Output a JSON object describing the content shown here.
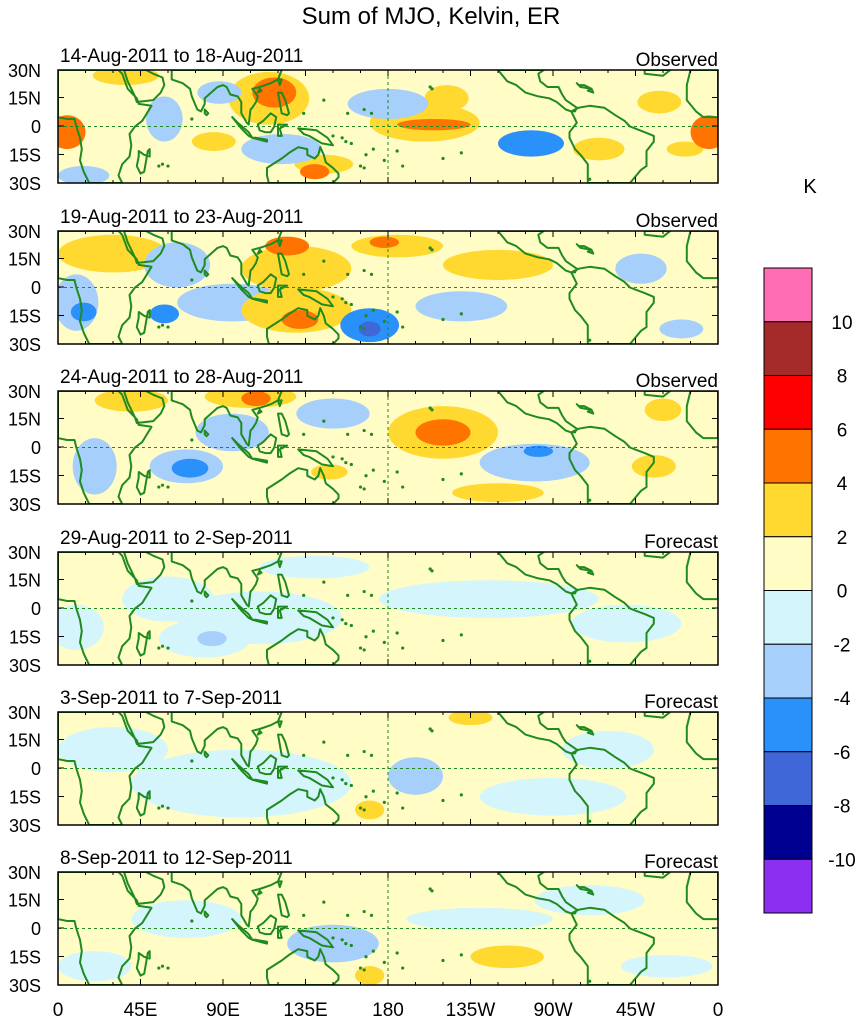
{
  "chart_data": {
    "type": "heatmap",
    "title": "Sum of MJO, Kelvin, ER",
    "units": "K",
    "y_ticks": [
      "30N",
      "15N",
      "0",
      "15S",
      "30S"
    ],
    "x_ticks": [
      "0",
      "45E",
      "90E",
      "135E",
      "180",
      "135W",
      "90W",
      "45W",
      "0"
    ],
    "x_range_deg_east": [
      0,
      360
    ],
    "y_range_deg": [
      -30,
      30
    ],
    "colorbar": {
      "label": "K",
      "levels": [
        10,
        8,
        6,
        4,
        2,
        0,
        -2,
        -4,
        -6,
        -8,
        -10
      ],
      "bins": [
        {
          "range": "> 10",
          "color": "#ff6eb4"
        },
        {
          "range": "8 to 10",
          "color": "#a52a2a"
        },
        {
          "range": "6 to 8",
          "color": "#ff0000"
        },
        {
          "range": "4 to 6",
          "color": "#ff7300"
        },
        {
          "range": "2 to 4",
          "color": "#ffd92f"
        },
        {
          "range": "0 to 2",
          "color": "#fffcc6"
        },
        {
          "range": "-2 to 0",
          "color": "#d4f5fb"
        },
        {
          "range": "-4 to -2",
          "color": "#a6cffb"
        },
        {
          "range": "-6 to -4",
          "color": "#2a90fa"
        },
        {
          "range": "-8 to -6",
          "color": "#4067d8"
        },
        {
          "range": "-10 to -8",
          "color": "#000090"
        },
        {
          "range": "< -10",
          "color": "#8c2ff0"
        }
      ]
    },
    "panels": [
      {
        "period": "14-Aug-2011 to 18-Aug-2011",
        "status": "Observed",
        "anomalies": [
          {
            "lon": 5,
            "lat": -3,
            "rlon": 10,
            "rlat": 9,
            "value": 5
          },
          {
            "lon": 355,
            "lat": -3,
            "rlon": 10,
            "rlat": 9,
            "value": 5
          },
          {
            "lon": 37,
            "lat": 27,
            "rlon": 18,
            "rlat": 5,
            "value": 3
          },
          {
            "lon": 115,
            "lat": 15,
            "rlon": 22,
            "rlat": 14,
            "value": 3
          },
          {
            "lon": 118,
            "lat": 18,
            "rlon": 12,
            "rlat": 8,
            "value": 5
          },
          {
            "lon": 88,
            "lat": 18,
            "rlon": 12,
            "rlat": 6,
            "value": -3
          },
          {
            "lon": 58,
            "lat": 4,
            "rlon": 10,
            "rlat": 12,
            "value": -3
          },
          {
            "lon": 85,
            "lat": -8,
            "rlon": 12,
            "rlat": 5,
            "value": 3
          },
          {
            "lon": 145,
            "lat": -20,
            "rlon": 16,
            "rlat": 5,
            "value": 3
          },
          {
            "lon": 122,
            "lat": -12,
            "rlon": 22,
            "rlat": 8,
            "value": -3
          },
          {
            "lon": 140,
            "lat": -24,
            "rlon": 8,
            "rlat": 4,
            "value": 5
          },
          {
            "lon": 200,
            "lat": 2,
            "rlon": 30,
            "rlat": 10,
            "value": 3
          },
          {
            "lon": 205,
            "lat": 1,
            "rlon": 20,
            "rlat": 3,
            "value": 5
          },
          {
            "lon": 212,
            "lat": 15,
            "rlon": 12,
            "rlat": 7,
            "value": 3
          },
          {
            "lon": 258,
            "lat": -9,
            "rlon": 18,
            "rlat": 7,
            "value": -5
          },
          {
            "lon": 295,
            "lat": -12,
            "rlon": 14,
            "rlat": 6,
            "value": 3
          },
          {
            "lon": 328,
            "lat": 13,
            "rlon": 12,
            "rlat": 6,
            "value": 3
          },
          {
            "lon": 342,
            "lat": -12,
            "rlon": 10,
            "rlat": 4,
            "value": 3
          },
          {
            "lon": 180,
            "lat": 12,
            "rlon": 22,
            "rlat": 8,
            "value": -3
          },
          {
            "lon": 14,
            "lat": -26,
            "rlon": 14,
            "rlat": 5,
            "value": -3
          }
        ]
      },
      {
        "period": "19-Aug-2011 to 23-Aug-2011",
        "status": "Observed",
        "anomalies": [
          {
            "lon": 30,
            "lat": 18,
            "rlon": 30,
            "rlat": 10,
            "value": 3
          },
          {
            "lon": 10,
            "lat": -8,
            "rlon": 12,
            "rlat": 15,
            "value": -3
          },
          {
            "lon": 14,
            "lat": -13,
            "rlon": 7,
            "rlat": 5,
            "value": -5
          },
          {
            "lon": 65,
            "lat": 12,
            "rlon": 18,
            "rlat": 12,
            "value": -3
          },
          {
            "lon": 58,
            "lat": -14,
            "rlon": 8,
            "rlat": 5,
            "value": -5
          },
          {
            "lon": 95,
            "lat": -8,
            "rlon": 30,
            "rlat": 10,
            "value": -3
          },
          {
            "lon": 130,
            "lat": 10,
            "rlon": 30,
            "rlat": 12,
            "value": 3
          },
          {
            "lon": 125,
            "lat": 22,
            "rlon": 12,
            "rlat": 5,
            "value": 5
          },
          {
            "lon": 130,
            "lat": -12,
            "rlon": 30,
            "rlat": 12,
            "value": 3
          },
          {
            "lon": 132,
            "lat": -17,
            "rlon": 10,
            "rlat": 5,
            "value": 5
          },
          {
            "lon": 170,
            "lat": -20,
            "rlon": 16,
            "rlat": 9,
            "value": -5
          },
          {
            "lon": 170,
            "lat": -22,
            "rlon": 6,
            "rlat": 4,
            "value": -7
          },
          {
            "lon": 185,
            "lat": 22,
            "rlon": 25,
            "rlat": 6,
            "value": 3
          },
          {
            "lon": 178,
            "lat": 24,
            "rlon": 8,
            "rlat": 3,
            "value": 5
          },
          {
            "lon": 240,
            "lat": 12,
            "rlon": 30,
            "rlat": 8,
            "value": 3
          },
          {
            "lon": 220,
            "lat": -10,
            "rlon": 25,
            "rlat": 8,
            "value": -3
          },
          {
            "lon": 318,
            "lat": 10,
            "rlon": 14,
            "rlat": 8,
            "value": -3
          },
          {
            "lon": 340,
            "lat": -22,
            "rlon": 12,
            "rlat": 5,
            "value": -3
          }
        ]
      },
      {
        "period": "24-Aug-2011 to 28-Aug-2011",
        "status": "Observed",
        "anomalies": [
          {
            "lon": 105,
            "lat": 27,
            "rlon": 25,
            "rlat": 6,
            "value": 3
          },
          {
            "lon": 108,
            "lat": 26,
            "rlon": 8,
            "rlat": 4,
            "value": 5
          },
          {
            "lon": 40,
            "lat": 25,
            "rlon": 20,
            "rlat": 6,
            "value": 3
          },
          {
            "lon": 20,
            "lat": -10,
            "rlon": 12,
            "rlat": 15,
            "value": -3
          },
          {
            "lon": 70,
            "lat": -10,
            "rlon": 20,
            "rlat": 9,
            "value": -3
          },
          {
            "lon": 72,
            "lat": -11,
            "rlon": 10,
            "rlat": 5,
            "value": -5
          },
          {
            "lon": 95,
            "lat": 8,
            "rlon": 20,
            "rlat": 10,
            "value": -3
          },
          {
            "lon": 150,
            "lat": 18,
            "rlon": 20,
            "rlat": 8,
            "value": -3
          },
          {
            "lon": 210,
            "lat": 8,
            "rlon": 30,
            "rlat": 14,
            "value": 3
          },
          {
            "lon": 210,
            "lat": 8,
            "rlon": 15,
            "rlat": 7,
            "value": 5
          },
          {
            "lon": 260,
            "lat": -8,
            "rlon": 30,
            "rlat": 10,
            "value": -3
          },
          {
            "lon": 262,
            "lat": -2,
            "rlon": 8,
            "rlat": 3,
            "value": -5
          },
          {
            "lon": 330,
            "lat": 20,
            "rlon": 10,
            "rlat": 6,
            "value": 3
          },
          {
            "lon": 325,
            "lat": -10,
            "rlon": 12,
            "rlat": 6,
            "value": 3
          },
          {
            "lon": 240,
            "lat": -24,
            "rlon": 25,
            "rlat": 5,
            "value": 3
          },
          {
            "lon": 148,
            "lat": -13,
            "rlon": 10,
            "rlat": 4,
            "value": 3
          }
        ]
      },
      {
        "period": "29-Aug-2011 to 2-Sep-2011",
        "status": "Forecast",
        "anomalies": [
          {
            "lon": 80,
            "lat": -16,
            "rlon": 25,
            "rlat": 10,
            "value": -1
          },
          {
            "lon": 60,
            "lat": 5,
            "rlon": 25,
            "rlat": 12,
            "value": -1
          },
          {
            "lon": 110,
            "lat": -5,
            "rlon": 45,
            "rlat": 14,
            "value": -1
          },
          {
            "lon": 235,
            "lat": 5,
            "rlon": 60,
            "rlat": 10,
            "value": -1
          },
          {
            "lon": 310,
            "lat": -8,
            "rlon": 30,
            "rlat": 10,
            "value": -1
          },
          {
            "lon": 10,
            "lat": -10,
            "rlon": 15,
            "rlat": 12,
            "value": -1
          },
          {
            "lon": 84,
            "lat": -16,
            "rlon": 8,
            "rlat": 4,
            "value": -3
          },
          {
            "lon": 140,
            "lat": 22,
            "rlon": 30,
            "rlat": 6,
            "value": -1
          }
        ]
      },
      {
        "period": "3-Sep-2011 to 7-Sep-2011",
        "status": "Forecast",
        "anomalies": [
          {
            "lon": 100,
            "lat": -8,
            "rlon": 60,
            "rlat": 18,
            "value": -1
          },
          {
            "lon": 195,
            "lat": -4,
            "rlon": 15,
            "rlat": 10,
            "value": -3
          },
          {
            "lon": 170,
            "lat": -22,
            "rlon": 8,
            "rlat": 5,
            "value": 3
          },
          {
            "lon": 225,
            "lat": 27,
            "rlon": 12,
            "rlat": 4,
            "value": 3
          },
          {
            "lon": 270,
            "lat": -15,
            "rlon": 40,
            "rlat": 10,
            "value": -1
          },
          {
            "lon": 30,
            "lat": 10,
            "rlon": 30,
            "rlat": 12,
            "value": -1
          },
          {
            "lon": 300,
            "lat": 10,
            "rlon": 25,
            "rlat": 10,
            "value": -1
          }
        ]
      },
      {
        "period": "8-Sep-2011 to 12-Sep-2011",
        "status": "Forecast",
        "anomalies": [
          {
            "lon": 245,
            "lat": -15,
            "rlon": 20,
            "rlat": 6,
            "value": 3
          },
          {
            "lon": 170,
            "lat": -25,
            "rlon": 8,
            "rlat": 5,
            "value": 3
          },
          {
            "lon": 150,
            "lat": -8,
            "rlon": 25,
            "rlat": 10,
            "value": -3
          },
          {
            "lon": 230,
            "lat": 5,
            "rlon": 40,
            "rlat": 6,
            "value": -1
          },
          {
            "lon": 70,
            "lat": 5,
            "rlon": 30,
            "rlat": 10,
            "value": -1
          },
          {
            "lon": 290,
            "lat": 15,
            "rlon": 30,
            "rlat": 8,
            "value": -1
          },
          {
            "lon": 140,
            "lat": 20,
            "rlon": 35,
            "rlat": 6,
            "value": 1
          },
          {
            "lon": 20,
            "lat": -20,
            "rlon": 20,
            "rlat": 8,
            "value": -1
          },
          {
            "lon": 332,
            "lat": -20,
            "rlon": 25,
            "rlat": 6,
            "value": -1
          }
        ]
      }
    ]
  }
}
